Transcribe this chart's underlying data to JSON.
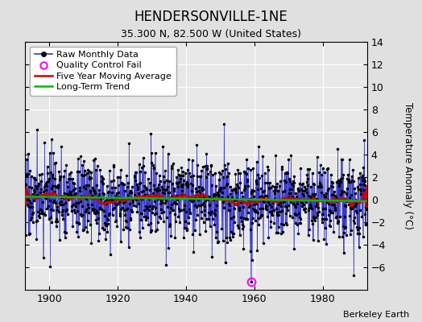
{
  "title": "HENDERSONVILLE-1NE",
  "subtitle": "35.300 N, 82.500 W (United States)",
  "ylabel": "Temperature Anomaly (°C)",
  "credit": "Berkeley Earth",
  "x_start": 1893,
  "x_end": 1993,
  "x_lim_left": 1893,
  "x_lim_right": 1993,
  "y_min": -8,
  "y_max": 14,
  "y_ticks": [
    -6,
    -4,
    -2,
    0,
    2,
    4,
    6,
    8,
    10,
    12,
    14
  ],
  "x_ticks": [
    1900,
    1920,
    1940,
    1960,
    1980
  ],
  "bg_color": "#e0e0e0",
  "plot_bg_color": "#e8e8e8",
  "line_color": "#3333cc",
  "ma_color": "#cc0000",
  "trend_color": "#00bb00",
  "qc_color": "#ff00ff",
  "qc_x": 1959.0,
  "qc_y": -7.3,
  "seed": 17,
  "anomaly_std": 1.8,
  "n_years": 100
}
